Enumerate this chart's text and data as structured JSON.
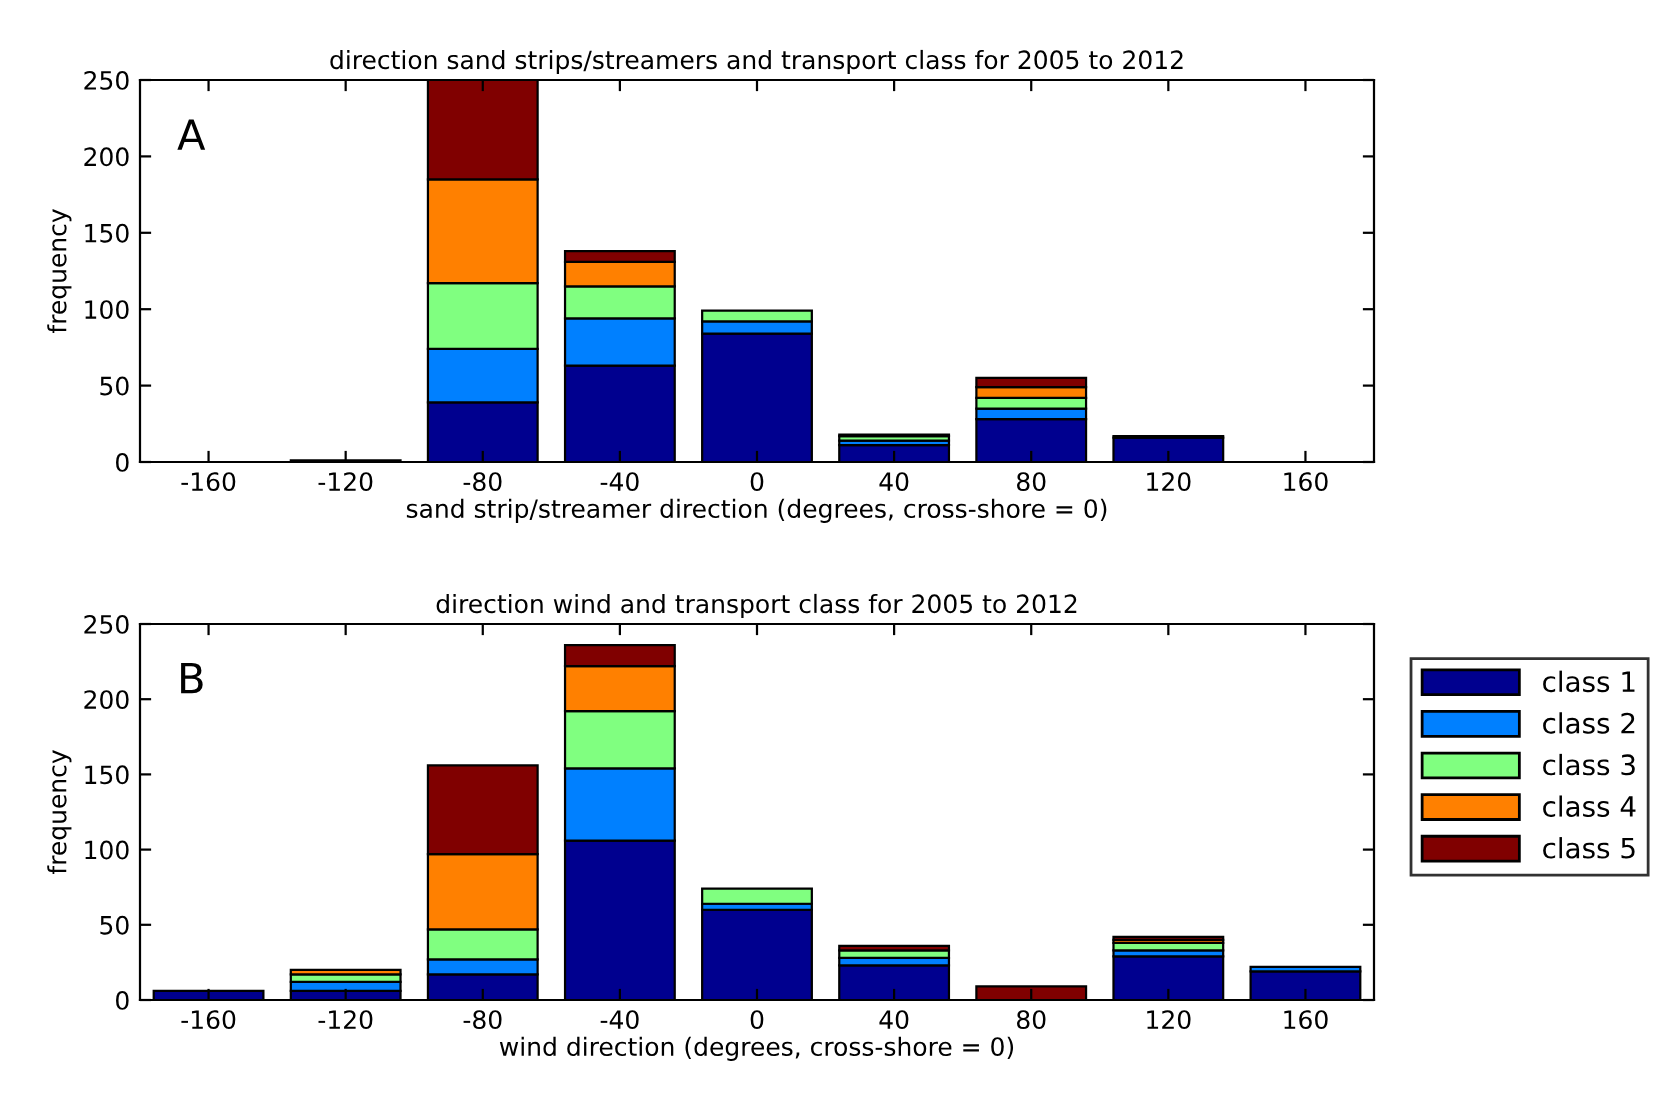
{
  "chart_data": [
    {
      "type": "bar",
      "stacked": true,
      "title": "direction sand strips/streamers and transport class for 2005 to 2012",
      "xlabel": "sand strip/streamer direction (degrees, cross-shore = 0)",
      "ylabel": "frequency",
      "annotations": [
        "A"
      ],
      "categories": [
        "-160",
        "-120",
        "-80",
        "-40",
        "0",
        "40",
        "80",
        "120",
        "160"
      ],
      "ylim": [
        0,
        250
      ],
      "yticks": [
        0,
        50,
        100,
        150,
        200,
        250
      ],
      "grid": false,
      "series": [
        {
          "color": "#00008f",
          "values": [
            null,
            1,
            39,
            63,
            84,
            11,
            28,
            16,
            null
          ]
        },
        {
          "color": "#0080ff",
          "values": [
            null,
            null,
            35,
            31,
            8,
            3,
            7,
            null,
            null
          ]
        },
        {
          "color": "#80ff80",
          "values": [
            null,
            null,
            43,
            21,
            7,
            3,
            7,
            null,
            null
          ]
        },
        {
          "color": "#ff8000",
          "values": [
            null,
            null,
            68,
            16,
            null,
            null,
            7,
            null,
            null
          ]
        },
        {
          "color": "#800000",
          "values": [
            null,
            null,
            65,
            7,
            null,
            1,
            6,
            1,
            null
          ]
        }
      ]
    },
    {
      "type": "bar",
      "stacked": true,
      "title": "direction wind and transport class for 2005 to 2012",
      "xlabel": "wind direction (degrees, cross-shore = 0)",
      "ylabel": "frequency",
      "annotations": [
        "B"
      ],
      "legend": "right",
      "categories": [
        "-160",
        "-120",
        "-80",
        "-40",
        "0",
        "40",
        "80",
        "120",
        "160"
      ],
      "ylim": [
        0,
        250
      ],
      "yticks": [
        0,
        50,
        100,
        150,
        200,
        250
      ],
      "grid": false,
      "series": [
        {
          "name": "class 1",
          "color": "#00008f",
          "values": [
            6,
            6,
            17,
            106,
            60,
            23,
            null,
            29,
            19
          ]
        },
        {
          "name": "class 2",
          "color": "#0080ff",
          "values": [
            null,
            6,
            10,
            48,
            4,
            5,
            null,
            4,
            3
          ]
        },
        {
          "name": "class 3",
          "color": "#80ff80",
          "values": [
            null,
            5,
            20,
            38,
            10,
            5,
            null,
            5,
            null
          ]
        },
        {
          "name": "class 4",
          "color": "#ff8000",
          "values": [
            null,
            3,
            50,
            30,
            null,
            null,
            null,
            2,
            null
          ]
        },
        {
          "name": "class 5",
          "color": "#800000",
          "values": [
            null,
            null,
            59,
            14,
            null,
            3,
            9,
            2,
            null
          ]
        }
      ]
    }
  ]
}
